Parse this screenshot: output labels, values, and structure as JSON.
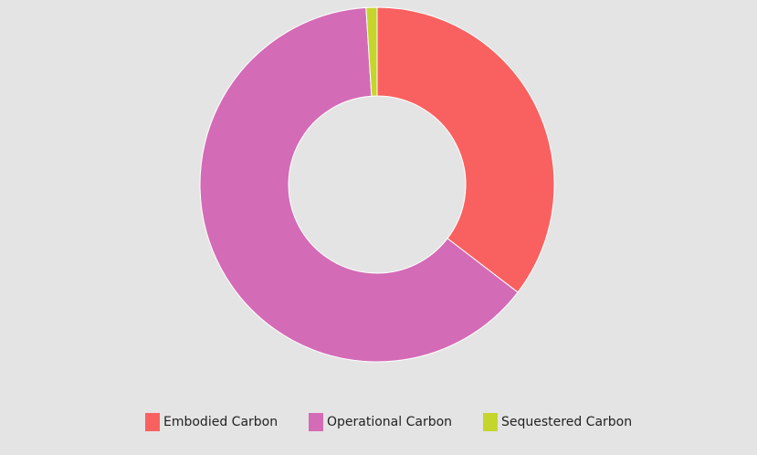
{
  "chart_data": {
    "type": "pie",
    "donut": true,
    "categories": [
      "Embodied Carbon",
      "Operational Carbon",
      "Sequestered Carbon"
    ],
    "values": [
      35.4,
      63.6,
      1.0
    ],
    "colors": [
      "#f96160",
      "#d46bb6",
      "#c4d62b"
    ],
    "legend_position": "bottom",
    "grid": false
  },
  "legend": {
    "items": [
      {
        "label": "Embodied Carbon",
        "color": "#f96160"
      },
      {
        "label": "Operational Carbon",
        "color": "#d46bb6"
      },
      {
        "label": "Sequestered Carbon",
        "color": "#c4d62b"
      }
    ]
  },
  "colors": {
    "background": "#e5e4e4",
    "slice_stroke": "#ffffff"
  }
}
